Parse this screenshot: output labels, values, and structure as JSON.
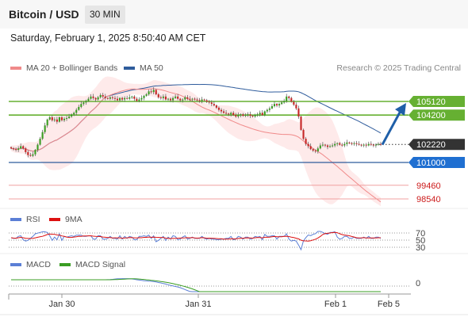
{
  "header": {
    "pair": "Bitcoin / USD",
    "interval": "30 MIN",
    "datetime": "Saturday, February 1, 2025 8:50:40 AM CET"
  },
  "legend": {
    "ma20": "MA 20 + Bollinger Bands",
    "ma50": "MA 50",
    "credit": "Research © 2025 Trading Central"
  },
  "colors": {
    "ma20": "#f08a8a",
    "ma50": "#2f5c9c",
    "bollinger": "#fde3e3",
    "bullish": "#3a9d23",
    "bearish": "#c62828",
    "resistance": "#66b032",
    "support_line": "#2f5c9c",
    "target": "#1f5fa8",
    "pivot": "#333333",
    "lower": "#f0a0a0"
  },
  "chart_data": [
    {
      "type": "candlestick",
      "title": "Bitcoin / USD 30 MIN",
      "x_ticks": [
        "Jan 30",
        "Jan 31",
        "Feb 1",
        "Feb 5"
      ],
      "levels": [
        {
          "label": "105120",
          "value": 105120,
          "kind": "resistance"
        },
        {
          "label": "104200",
          "value": 104200,
          "kind": "resistance"
        },
        {
          "label": "102220",
          "value": 102220,
          "kind": "pivot"
        },
        {
          "label": "101000",
          "value": 101000,
          "kind": "support"
        },
        {
          "label": "99460",
          "value": 99460,
          "kind": "lower"
        },
        {
          "label": "98540",
          "value": 98540,
          "kind": "lower"
        }
      ],
      "close": [
        101950,
        101900,
        101850,
        101950,
        102100,
        101950,
        101700,
        101500,
        101450,
        101550,
        101850,
        102200,
        102600,
        103050,
        103500,
        103900,
        104050,
        103850,
        103900,
        103750,
        104050,
        103850,
        103950,
        104000,
        104100,
        104250,
        104350,
        104550,
        104750,
        104950,
        105050,
        105150,
        105300,
        105450,
        105350,
        105250,
        105400,
        105550,
        105450,
        105350,
        105300,
        105400,
        105350,
        105300,
        105200,
        105350,
        105250,
        105350,
        105300,
        105400,
        105450,
        105300,
        105150,
        105250,
        105350,
        105500,
        105600,
        105800,
        105750,
        105900,
        105600,
        105400,
        105350,
        105450,
        105250,
        105300,
        105200,
        105350,
        105450,
        105300,
        105200,
        105250,
        105400,
        105300,
        105250,
        105300,
        105250,
        105200,
        105150,
        105250,
        105200,
        105100,
        105050,
        104950,
        104850,
        104700,
        104550,
        104450,
        104350,
        104300,
        104250,
        104350,
        104200,
        104100,
        104200,
        104250,
        104150,
        104200,
        104250,
        104150,
        104100,
        104200,
        104250,
        104350,
        104200,
        104450,
        104550,
        104650,
        104800,
        104950,
        104850,
        104950,
        105050,
        105150,
        105450,
        105350,
        105100,
        104900,
        104650,
        104100,
        103200,
        102600,
        102250,
        102100,
        101900,
        101800,
        101750,
        101950,
        102150,
        102200,
        102150,
        102050,
        102100,
        102150,
        102250,
        102300,
        102200,
        102150,
        102250,
        102350,
        102300,
        102250,
        102300,
        102250,
        102200,
        102150,
        102200,
        102150,
        102250,
        102200,
        102150,
        102200,
        102250,
        102200
      ],
      "ma20": [
        101950,
        101925,
        101900,
        101913,
        101950,
        101950,
        101914,
        101850,
        101794,
        101770,
        101779,
        101817,
        101883,
        101971,
        102080,
        102200,
        102309,
        102389,
        102464,
        102523,
        102628,
        102728,
        102833,
        102935,
        103042,
        103157,
        103282,
        103425,
        103590,
        103760,
        103920,
        104085,
        104257,
        104432,
        104575,
        104717,
        104890,
        105075,
        105252,
        105422,
        105485,
        105540,
        105605,
        105670,
        105727,
        105782,
        105830,
        105870,
        105911,
        105934,
        105960,
        105958,
        105944,
        105934,
        105932,
        105940,
        105950,
        105963,
        105978,
        105992,
        105967,
        105932,
        105907,
        105867,
        105825,
        105773,
        105723,
        105680,
        105645,
        105602,
        105542,
        105475,
        105392,
        105310,
        105231,
        105138,
        105028,
        104925,
        104839,
        104741,
        104665,
        104598,
        104535,
        104470,
        104395,
        104313,
        104234,
        104155,
        104070,
        103990,
        103915,
        103838,
        103765,
        103694,
        103620,
        103555,
        103492,
        103434,
        103380,
        103323,
        103265,
        103216,
        103169,
        103124,
        103084,
        103051,
        103021,
        102995,
        102977,
        102956,
        102932,
        102915,
        102901,
        102892,
        102892,
        102891,
        102873,
        102839,
        102789,
        102708,
        102585,
        102449,
        102317,
        102191,
        102071,
        101953,
        101842,
        101738,
        101632,
        101523,
        101399,
        101269,
        101134,
        100998,
        100865,
        100732,
        100590,
        100448,
        100306,
        100162,
        100023,
        99888,
        99749,
        99611,
        99475,
        99337,
        99200,
        99066,
        98939,
        98812,
        98689,
        98571,
        98454,
        98338
      ],
      "ma50": [
        101950,
        101925,
        101900,
        101913,
        101950,
        101950,
        101914,
        101850,
        101794,
        101770,
        101779,
        101817,
        101883,
        101971,
        102080,
        102200,
        102309,
        102389,
        102464,
        102523,
        102628,
        102728,
        102833,
        102935,
        103042,
        103157,
        103282,
        103425,
        103590,
        103760,
        103920,
        104085,
        104257,
        104432,
        104575,
        104717,
        104890,
        105075,
        105252,
        105422,
        105478,
        105523,
        105567,
        105609,
        105643,
        105688,
        105730,
        105770,
        105812,
        105850,
        105889,
        105918,
        105941,
        105965,
        105991,
        106021,
        106050,
        106084,
        106114,
        106149,
        106166,
        106175,
        106186,
        106200,
        106205,
        106214,
        106217,
        106226,
        106238,
        106242,
        106244,
        106249,
        106259,
        106262,
        106264,
        106268,
        106270,
        106269,
        106266,
        106268,
        106268,
        106264,
        106259,
        106250,
        106238,
        106222,
        106202,
        106182,
        106158,
        106133,
        106107,
        106085,
        106059,
        106031,
        106007,
        105983,
        105958,
        105935,
        105913,
        105889,
        105862,
        105840,
        105820,
        105805,
        105784,
        105771,
        105762,
        105757,
        105758,
        105762,
        105760,
        105762,
        105768,
        105777,
        105798,
        105813,
        105818,
        105817,
        105805,
        105770,
        105708,
        105631,
        105546,
        105457,
        105364,
        105270,
        105178,
        105094,
        105015,
        104938,
        104858,
        104774,
        104692,
        104611,
        104534,
        104460,
        104380,
        104299,
        104224,
        104153,
        104079,
        104002,
        103929,
        103852,
        103770,
        103684,
        103602,
        103515,
        103431,
        103345,
        103256,
        103166,
        103077,
        102986
      ]
    },
    {
      "type": "line",
      "title": "RSI",
      "series": [
        {
          "name": "RSI"
        },
        {
          "name": "9MA"
        }
      ],
      "y_ticks": [
        "70",
        "50",
        "30"
      ]
    },
    {
      "type": "line",
      "title": "MACD",
      "series": [
        {
          "name": "MACD"
        },
        {
          "name": "MACD Signal"
        }
      ],
      "y_ticks": [
        "0"
      ]
    }
  ]
}
